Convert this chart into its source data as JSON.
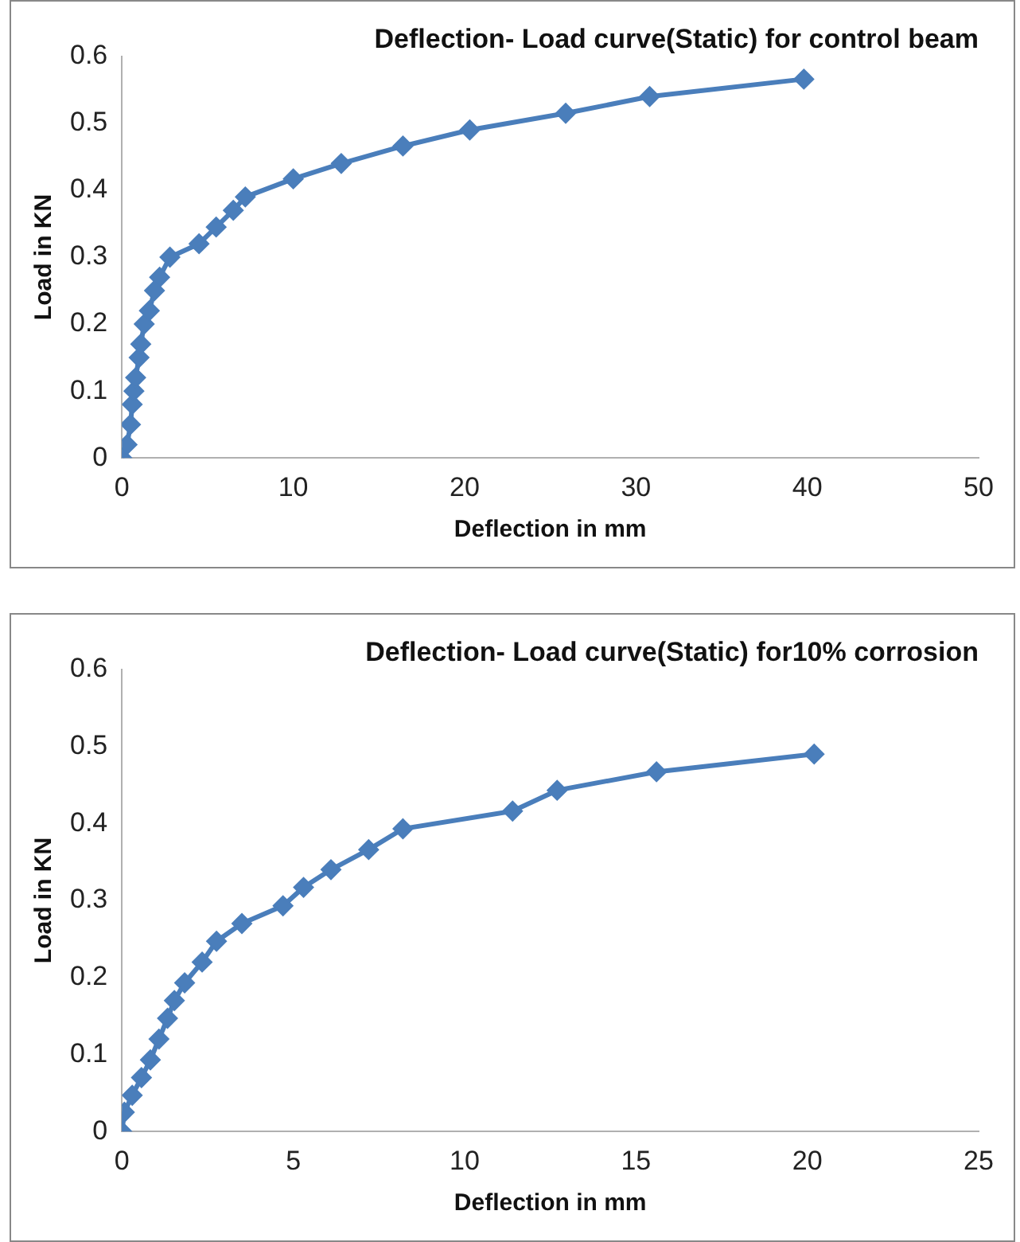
{
  "chart_data": [
    {
      "type": "line",
      "title": "Deflection- Load curve(Static) for control beam",
      "xlabel": "Deflection in mm",
      "ylabel": "Load in KN",
      "xlim": [
        0,
        50
      ],
      "xticks": [
        0,
        10,
        20,
        30,
        40,
        50
      ],
      "ylim": [
        0,
        0.6
      ],
      "yticks": [
        0,
        0.1,
        0.2,
        0.3,
        0.4,
        0.5,
        0.6
      ],
      "grid": false,
      "legend": false,
      "marker": "diamond",
      "line_style": "solid",
      "series": [
        {
          "color": "#4a7ebb",
          "x": [
            0,
            0.3,
            0.5,
            0.6,
            0.7,
            0.8,
            1,
            1.1,
            1.3,
            1.6,
            1.9,
            2.2,
            2.8,
            4.5,
            5.5,
            6.5,
            7.2,
            10,
            12.8,
            16.4,
            20.3,
            25.9,
            30.8,
            39.8
          ],
          "values": [
            0,
            0.02,
            0.05,
            0.08,
            0.1,
            0.12,
            0.15,
            0.17,
            0.2,
            0.22,
            0.25,
            0.27,
            0.3,
            0.32,
            0.345,
            0.37,
            0.39,
            0.417,
            0.44,
            0.466,
            0.49,
            0.515,
            0.54,
            0.566
          ]
        }
      ]
    },
    {
      "type": "line",
      "title": "Deflection- Load curve(Static) for10% corrosion",
      "xlabel": "Deflection in mm",
      "ylabel": "Load in KN",
      "xlim": [
        0,
        25
      ],
      "xticks": [
        0,
        5,
        10,
        15,
        20,
        25
      ],
      "ylim": [
        0,
        0.6
      ],
      "yticks": [
        0,
        0.1,
        0.2,
        0.3,
        0.4,
        0.5,
        0.6
      ],
      "grid": false,
      "legend": false,
      "marker": "diamond",
      "line_style": "solid",
      "series": [
        {
          "color": "#4a7ebb",
          "x": [
            0,
            0.07,
            0.3,
            0.57,
            0.83,
            1.08,
            1.33,
            1.53,
            1.83,
            2.34,
            2.76,
            3.5,
            4.7,
            5.3,
            6.1,
            7.2,
            8.2,
            11.4,
            12.7,
            15.6,
            20.2
          ],
          "values": [
            0,
            0.025,
            0.047,
            0.07,
            0.093,
            0.12,
            0.147,
            0.17,
            0.193,
            0.22,
            0.247,
            0.27,
            0.293,
            0.317,
            0.34,
            0.366,
            0.393,
            0.416,
            0.443,
            0.467,
            0.49
          ]
        }
      ]
    }
  ]
}
